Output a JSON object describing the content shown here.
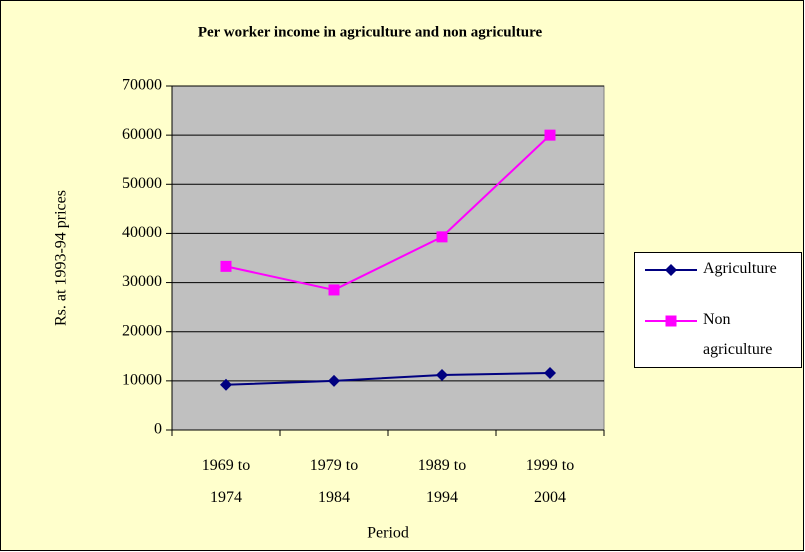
{
  "chart_data": {
    "type": "line",
    "title": "Per worker income in agriculture and non agriculture",
    "x_label": "Period",
    "y_label": "Rs. at 1993-94 prices",
    "categories": [
      "1969 to 1974",
      "1979 to 1984",
      "1989 to 1994",
      "1999 to 2004"
    ],
    "series": [
      {
        "name": "Agriculture",
        "color": "#000080",
        "marker": "diamond",
        "values": [
          9200,
          10000,
          11200,
          11600
        ]
      },
      {
        "name": "Non agriculture",
        "color": "#ff00ff",
        "marker": "square",
        "values": [
          33300,
          28500,
          39300,
          60000
        ]
      }
    ],
    "ylim": [
      0,
      70000
    ],
    "yticks": [
      0,
      10000,
      20000,
      30000,
      40000,
      50000,
      60000,
      70000
    ],
    "grid": true,
    "legend": "right"
  }
}
